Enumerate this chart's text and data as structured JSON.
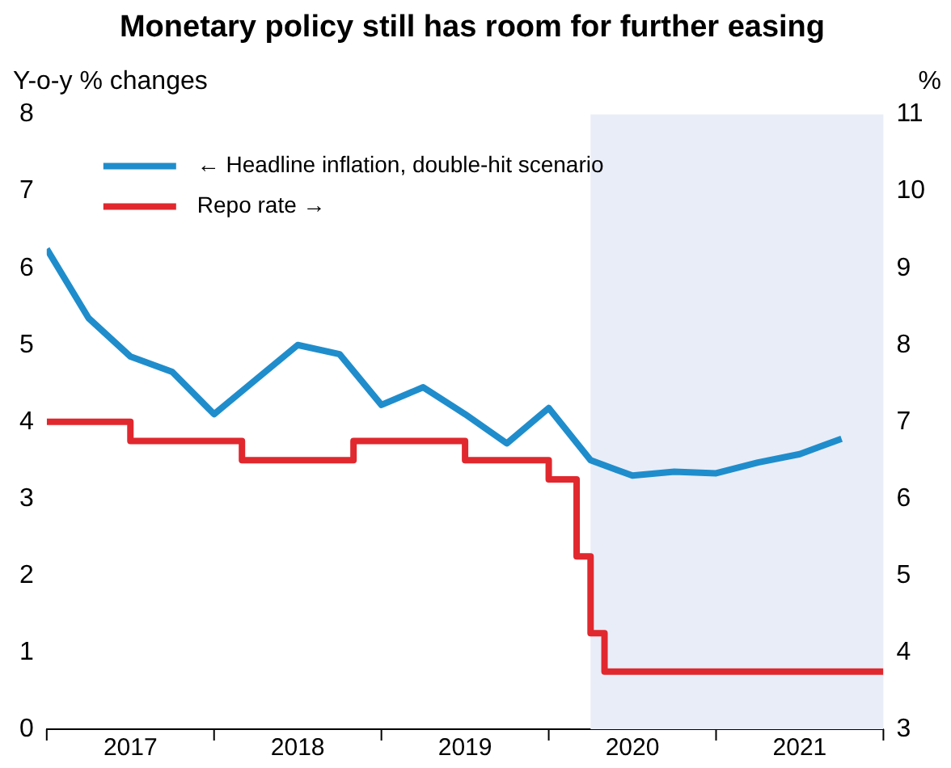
{
  "chart_data": {
    "type": "line",
    "title": "Monetary policy still has room for further easing",
    "ylabel": "Y-o-y % changes",
    "y2label": "%",
    "xlim": [
      "2017-01",
      "2022-01"
    ],
    "xticks": [
      {
        "value": "2017-01",
        "label": null
      },
      {
        "value": "2017-07",
        "label": "2017"
      },
      {
        "value": "2018-01",
        "label": null
      },
      {
        "value": "2018-07",
        "label": "2018"
      },
      {
        "value": "2019-01",
        "label": null
      },
      {
        "value": "2019-07",
        "label": "2019"
      },
      {
        "value": "2020-01",
        "label": null
      },
      {
        "value": "2020-07",
        "label": "2020"
      },
      {
        "value": "2021-01",
        "label": null
      },
      {
        "value": "2021-07",
        "label": "2021"
      },
      {
        "value": "2022-01",
        "label": null
      }
    ],
    "ylim": [
      0,
      8
    ],
    "yticks": [
      0,
      1,
      2,
      3,
      4,
      5,
      6,
      7,
      8
    ],
    "y2lim": [
      3,
      11
    ],
    "y2ticks": [
      3,
      4,
      5,
      6,
      7,
      8,
      9,
      10,
      11
    ],
    "grid": false,
    "legend": "top left",
    "marker": "none",
    "bands": [
      {
        "axis": "x",
        "from": "2020-04",
        "to": "2022-01",
        "color": "#e9edf7"
      }
    ],
    "series": [
      {
        "name": "← Headline inflation, double-hit scenario",
        "color": "#1f8dcc",
        "x": [
          "2017-01",
          "2017-04",
          "2017-07",
          "2017-10",
          "2018-01",
          "2018-04",
          "2018-07",
          "2018-10",
          "2019-01",
          "2019-04",
          "2019-07",
          "2019-10",
          "2020-01",
          "2020-04",
          "2020-07",
          "2020-10",
          "2021-01",
          "2021-04",
          "2021-07",
          "2021-10"
        ],
        "values": [
          6.25,
          5.35,
          4.85,
          4.65,
          4.1,
          4.55,
          5.0,
          4.88,
          4.22,
          4.45,
          4.1,
          3.72,
          4.18,
          3.5,
          3.3,
          3.35,
          3.33,
          3.47,
          3.58,
          3.78
        ]
      },
      {
        "name": "Repo rate →",
        "type": "step",
        "axis": "y2",
        "color": "#e0282e",
        "x": [
          "2017-01",
          "2017-07",
          "2018-03",
          "2018-11",
          "2019-07",
          "2020-01",
          "2020-03",
          "2020-04",
          "2020-05",
          "2022-01"
        ],
        "values": [
          7.0,
          6.75,
          6.5,
          6.75,
          6.5,
          6.25,
          5.25,
          4.25,
          3.75,
          3.75
        ]
      }
    ]
  }
}
